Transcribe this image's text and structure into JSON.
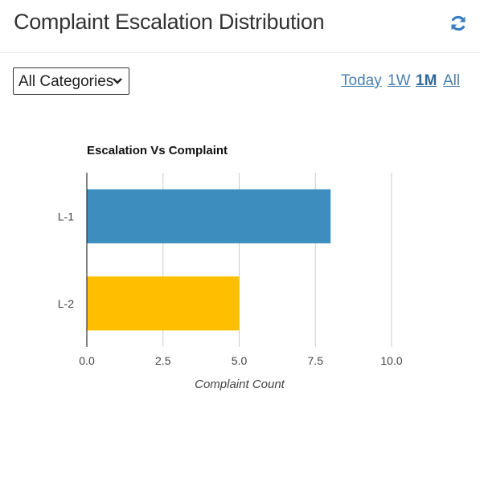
{
  "header": {
    "title": "Complaint Escalation Distribution",
    "refresh_icon": "refresh-icon"
  },
  "filter": {
    "category_selected": "All Categories",
    "chevron_icon": "chevron-down-icon"
  },
  "time_ranges": [
    {
      "label": "Today",
      "active": false
    },
    {
      "label": "1W",
      "active": false
    },
    {
      "label": "1M",
      "active": true
    },
    {
      "label": "All",
      "active": false
    }
  ],
  "colors": {
    "accent": "#2e7fbf",
    "link": "#4a7fae"
  },
  "chart_data": {
    "type": "bar",
    "orientation": "horizontal",
    "title": "Escalation Vs Complaint",
    "categories": [
      "L-1",
      "L-2"
    ],
    "values": [
      8,
      5
    ],
    "colors": [
      "#3d8dbf",
      "#ffbf00"
    ],
    "xlabel": "Complaint Count",
    "ylabel": "",
    "xlim": [
      0,
      10
    ],
    "xticks": [
      "0.0",
      "2.5",
      "5.0",
      "7.5",
      "10.0"
    ],
    "grid": true,
    "legend": "none"
  }
}
